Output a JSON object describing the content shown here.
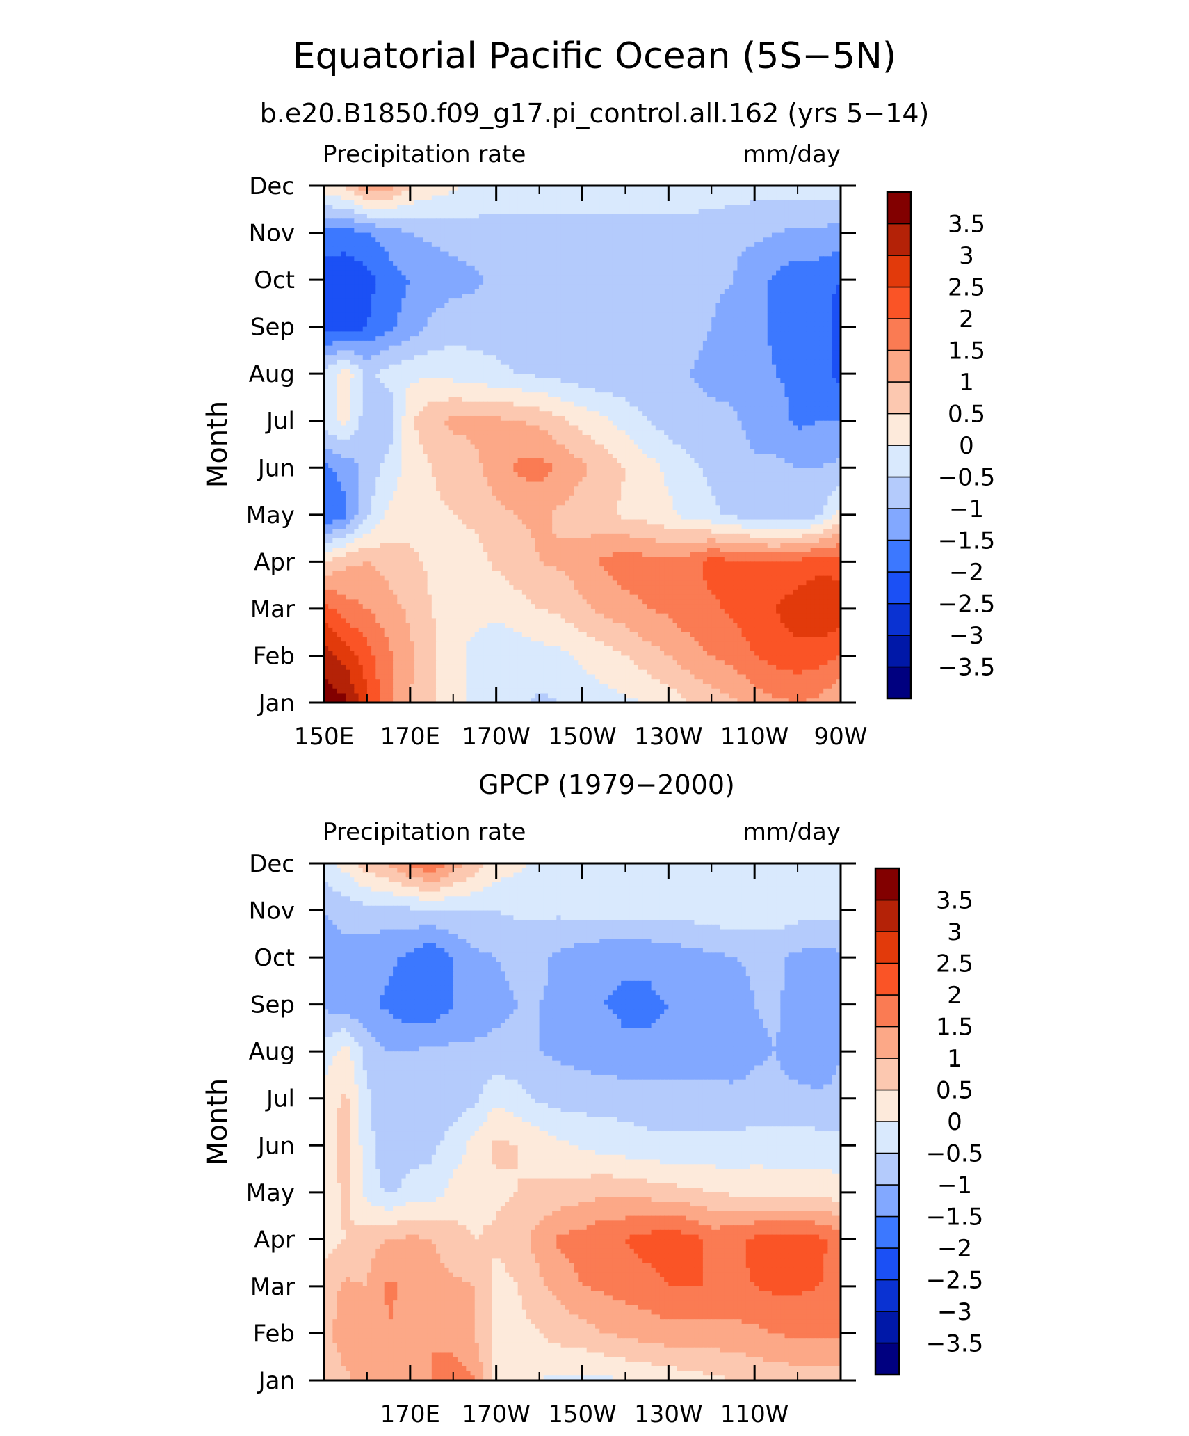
{
  "figure": {
    "title": "Equatorial Pacific Ocean (5S−5N)",
    "subtitle": "b.e20.B1850.f09_g17.pi_control.all.162 (yrs 5−14)"
  },
  "colors": {
    "levels": [
      "#000080",
      "#0018a8",
      "#0a32d2",
      "#1b50f5",
      "#3c78ff",
      "#82a8ff",
      "#b4cbfc",
      "#d9e9fd",
      "#fdeadb",
      "#fcc8b0",
      "#fca887",
      "#fa7b53",
      "#fa5426",
      "#e23a0b",
      "#b42207",
      "#820000"
    ]
  },
  "chart_data": [
    {
      "type": "heatmap",
      "name": "model",
      "panel_title": "",
      "corner_left": "Precipitation rate",
      "corner_right": "mm/day",
      "ylabel": "Month",
      "xlabel": "",
      "x_range": [
        150,
        270
      ],
      "x_ticks": [
        150,
        170,
        190,
        210,
        230,
        250,
        270
      ],
      "x_tick_labels": [
        "150E",
        "170E",
        "170W",
        "150W",
        "130W",
        "110W",
        "90W"
      ],
      "y_tick_labels": [
        "Jan",
        "Feb",
        "Mar",
        "Apr",
        "May",
        "Jun",
        "Jul",
        "Aug",
        "Sep",
        "Oct",
        "Nov",
        "Dec"
      ],
      "colorbar_labels": [
        "3.5",
        "3",
        "2.5",
        "2",
        "1.5",
        "1",
        "0.5",
        "0",
        "−0.5",
        "−1",
        "−1.5",
        "−2",
        "−2.5",
        "−3",
        "−3.5"
      ],
      "contour_levels": [
        -3.5,
        -3,
        -2.5,
        -2,
        -1.5,
        -1,
        -0.5,
        0,
        0.5,
        1,
        1.5,
        2,
        2.5,
        3,
        3.5
      ],
      "x": [
        150,
        155,
        160,
        165,
        170,
        175,
        180,
        185,
        190,
        195,
        200,
        205,
        210,
        215,
        220,
        225,
        230,
        235,
        240,
        245,
        250,
        255,
        260,
        265,
        270
      ],
      "values": [
        [
          3.8,
          3.6,
          2.6,
          1.6,
          1.0,
          0.6,
          0.2,
          -0.2,
          -0.3,
          -0.4,
          -0.6,
          -0.5,
          -0.3,
          -0.2,
          -0.1,
          0.0,
          0.2,
          0.5,
          0.7,
          0.9,
          1.2,
          1.4,
          1.5,
          1.4,
          1.0
        ],
        [
          3.2,
          2.8,
          2.2,
          1.6,
          1.1,
          0.6,
          0.2,
          -0.2,
          -0.3,
          -0.3,
          -0.2,
          -0.1,
          0.1,
          0.3,
          0.5,
          0.8,
          1.0,
          1.3,
          1.5,
          1.7,
          2.0,
          2.2,
          2.3,
          2.2,
          2.0
        ],
        [
          2.2,
          1.7,
          1.5,
          1.2,
          0.9,
          0.5,
          0.3,
          0.2,
          0.1,
          0.3,
          0.5,
          0.6,
          0.9,
          1.1,
          1.3,
          1.5,
          1.6,
          1.8,
          1.9,
          2.1,
          2.3,
          2.5,
          2.8,
          3.0,
          2.8
        ],
        [
          0.5,
          0.9,
          1.0,
          0.8,
          0.6,
          0.4,
          0.3,
          0.3,
          0.6,
          0.8,
          1.0,
          1.1,
          1.3,
          1.6,
          1.8,
          1.7,
          1.6,
          1.8,
          2.2,
          2.1,
          2.0,
          2.0,
          2.1,
          2.3,
          2.3
        ],
        [
          -2.0,
          -1.6,
          -0.6,
          0.1,
          0.3,
          0.4,
          0.5,
          0.6,
          0.9,
          1.0,
          1.1,
          0.9,
          0.7,
          0.6,
          0.4,
          0.3,
          0.1,
          -0.2,
          -0.4,
          -0.6,
          -0.8,
          -0.9,
          -0.9,
          -0.6,
          0.2
        ],
        [
          -1.6,
          -1.3,
          -0.8,
          -0.3,
          0.2,
          0.5,
          0.7,
          0.9,
          1.2,
          1.6,
          1.7,
          1.4,
          1.1,
          0.8,
          0.5,
          0.2,
          -0.1,
          -0.4,
          -0.6,
          -0.7,
          -0.9,
          -0.9,
          -1.0,
          -1.0,
          -0.9
        ],
        [
          -0.2,
          0.1,
          -0.8,
          -0.9,
          0.4,
          0.9,
          1.1,
          1.1,
          1.1,
          1.0,
          0.9,
          0.6,
          0.3,
          0.1,
          -0.2,
          -0.5,
          -0.7,
          -0.9,
          -0.9,
          -0.9,
          -1.2,
          -1.3,
          -1.6,
          -1.5,
          -1.5
        ],
        [
          -0.3,
          0.3,
          -0.6,
          -0.3,
          -0.1,
          -0.1,
          -0.2,
          -0.3,
          -0.4,
          -0.5,
          -0.6,
          -0.7,
          -0.8,
          -0.9,
          -0.9,
          -0.9,
          -1.0,
          -1.0,
          -1.1,
          -1.2,
          -1.3,
          -1.5,
          -1.6,
          -1.7,
          -2.2
        ],
        [
          -2.3,
          -2.3,
          -2.0,
          -1.6,
          -1.3,
          -0.9,
          -0.7,
          -0.7,
          -0.7,
          -0.8,
          -0.8,
          -0.8,
          -0.8,
          -0.8,
          -0.8,
          -0.8,
          -0.9,
          -0.9,
          -1.0,
          -1.2,
          -1.4,
          -1.6,
          -1.7,
          -1.7,
          -2.3
        ],
        [
          -2.4,
          -2.4,
          -2.2,
          -1.7,
          -1.5,
          -1.3,
          -1.2,
          -1.1,
          -0.9,
          -0.8,
          -0.8,
          -0.8,
          -0.8,
          -0.8,
          -0.8,
          -0.8,
          -0.8,
          -0.8,
          -0.9,
          -1.0,
          -1.3,
          -1.6,
          -1.8,
          -1.8,
          -2.0
        ],
        [
          -1.6,
          -1.7,
          -1.5,
          -1.3,
          -1.0,
          -0.9,
          -0.8,
          -0.7,
          -0.7,
          -0.7,
          -0.7,
          -0.7,
          -0.7,
          -0.7,
          -0.7,
          -0.7,
          -0.7,
          -0.7,
          -0.8,
          -0.9,
          -0.9,
          -1.0,
          -1.1,
          -1.1,
          -1.2
        ],
        [
          0.3,
          0.6,
          1.4,
          1.2,
          0.6,
          0.3,
          0.1,
          -0.1,
          -0.2,
          -0.2,
          -0.2,
          -0.2,
          -0.2,
          -0.2,
          -0.2,
          -0.2,
          -0.2,
          -0.2,
          -0.2,
          -0.2,
          -0.3,
          -0.3,
          -0.3,
          -0.2,
          -0.2
        ]
      ]
    },
    {
      "type": "heatmap",
      "name": "gpcp",
      "panel_title": "GPCP (1979−2000)",
      "corner_left": "Precipitation rate",
      "corner_right": "mm/day",
      "ylabel": "Month",
      "xlabel": "",
      "x_range": [
        150,
        270
      ],
      "x_ticks": [
        170,
        190,
        210,
        230,
        250
      ],
      "x_tick_labels": [
        "170E",
        "170W",
        "150W",
        "130W",
        "110W"
      ],
      "y_tick_labels": [
        "Jan",
        "Feb",
        "Mar",
        "Apr",
        "May",
        "Jun",
        "Jul",
        "Aug",
        "Sep",
        "Oct",
        "Nov",
        "Dec"
      ],
      "colorbar_labels": [
        "3.5",
        "3",
        "2.5",
        "2",
        "1.5",
        "1",
        "0.5",
        "0",
        "−0.5",
        "−1",
        "−1.5",
        "−2",
        "−2.5",
        "−3",
        "−3.5"
      ],
      "contour_levels": [
        -3.5,
        -3,
        -2.5,
        -2,
        -1.5,
        -1,
        -0.5,
        0,
        0.5,
        1,
        1.5,
        2,
        2.5,
        3,
        3.5
      ],
      "x": [
        150,
        155,
        160,
        165,
        170,
        175,
        180,
        185,
        190,
        195,
        200,
        205,
        210,
        215,
        220,
        225,
        230,
        235,
        240,
        245,
        250,
        255,
        260,
        265,
        270
      ],
      "values": [
        [
          0.6,
          0.9,
          1.2,
          1.4,
          1.3,
          1.5,
          1.8,
          1.5,
          0.3,
          0.1,
          0.0,
          -0.1,
          -0.1,
          -0.1,
          0.0,
          0.1,
          0.2,
          0.3,
          0.4,
          0.5,
          0.6,
          0.7,
          0.7,
          0.7,
          0.7
        ],
        [
          0.8,
          1.3,
          1.0,
          1.5,
          1.2,
          1.5,
          1.3,
          1.0,
          0.3,
          0.3,
          0.5,
          0.7,
          0.8,
          1.0,
          1.1,
          1.2,
          1.3,
          1.3,
          1.3,
          1.3,
          1.4,
          1.5,
          1.6,
          1.6,
          1.6
        ],
        [
          0.7,
          1.1,
          1.0,
          1.6,
          1.4,
          1.2,
          1.1,
          1.0,
          0.3,
          0.5,
          0.9,
          1.2,
          1.5,
          1.6,
          1.7,
          1.8,
          2.0,
          2.0,
          2.0,
          1.9,
          2.0,
          2.1,
          2.1,
          2.0,
          1.9
        ],
        [
          0.3,
          0.5,
          0.8,
          1.0,
          1.1,
          1.0,
          0.7,
          0.5,
          0.6,
          0.8,
          1.2,
          1.6,
          1.7,
          1.9,
          2.0,
          2.2,
          2.3,
          2.2,
          1.8,
          1.9,
          2.1,
          2.3,
          2.3,
          2.1,
          1.8
        ],
        [
          0.2,
          0.6,
          -0.2,
          -0.6,
          -0.3,
          -0.3,
          0.2,
          0.3,
          0.4,
          0.5,
          0.6,
          0.7,
          0.8,
          0.9,
          0.9,
          0.8,
          0.7,
          0.6,
          0.5,
          0.4,
          0.4,
          0.3,
          0.3,
          0.3,
          0.2
        ],
        [
          0.3,
          0.7,
          -0.3,
          -0.9,
          -0.7,
          -0.6,
          -0.3,
          0.2,
          0.6,
          0.5,
          0.3,
          0.1,
          -0.1,
          -0.2,
          -0.3,
          -0.4,
          -0.4,
          -0.4,
          -0.4,
          -0.4,
          -0.3,
          -0.3,
          -0.3,
          -0.3,
          -0.3
        ],
        [
          0.2,
          0.6,
          -0.4,
          -0.9,
          -0.9,
          -0.8,
          -0.8,
          -0.6,
          -0.1,
          -0.3,
          -0.6,
          -0.7,
          -0.7,
          -0.7,
          -0.7,
          -0.7,
          -0.7,
          -0.7,
          -0.7,
          -0.8,
          -0.8,
          -0.8,
          -0.8,
          -0.9,
          -0.9
        ],
        [
          -0.3,
          0.2,
          -0.7,
          -1.0,
          -1.0,
          -0.9,
          -0.9,
          -0.9,
          -0.9,
          -0.9,
          -1.0,
          -1.1,
          -1.2,
          -1.3,
          -1.4,
          -1.4,
          -1.4,
          -1.4,
          -1.4,
          -1.4,
          -1.1,
          -1.0,
          -1.4,
          -1.4,
          -1.0
        ],
        [
          -1.1,
          -1.3,
          -1.4,
          -1.6,
          -1.9,
          -1.9,
          -1.5,
          -1.3,
          -1.1,
          -1.0,
          -1.0,
          -1.1,
          -1.4,
          -1.5,
          -1.6,
          -1.6,
          -1.5,
          -1.5,
          -1.5,
          -1.4,
          -1.0,
          -0.9,
          -1.3,
          -1.4,
          -1.3
        ],
        [
          -1.2,
          -1.2,
          -1.3,
          -1.4,
          -1.6,
          -1.9,
          -1.5,
          -1.1,
          -1.0,
          -0.9,
          -0.9,
          -1.1,
          -1.3,
          -1.4,
          -1.4,
          -1.4,
          -1.3,
          -1.2,
          -1.1,
          -1.0,
          -0.9,
          -0.9,
          -1.1,
          -1.2,
          -1.1
        ],
        [
          -1.0,
          -0.8,
          -0.7,
          -0.7,
          -0.6,
          -0.6,
          -0.5,
          -0.5,
          -0.5,
          -0.4,
          -0.4,
          -0.4,
          -0.3,
          -0.3,
          -0.3,
          -0.3,
          -0.3,
          -0.3,
          -0.2,
          -0.2,
          -0.2,
          -0.2,
          -0.3,
          -0.3,
          -0.3
        ],
        [
          -0.2,
          0.2,
          0.8,
          1.1,
          1.6,
          2.1,
          1.3,
          0.8,
          0.3,
          0.1,
          -0.1,
          -0.2,
          -0.3,
          -0.3,
          -0.3,
          -0.3,
          -0.3,
          -0.3,
          -0.3,
          -0.3,
          -0.3,
          -0.3,
          -0.3,
          -0.3,
          -0.3
        ]
      ]
    }
  ]
}
